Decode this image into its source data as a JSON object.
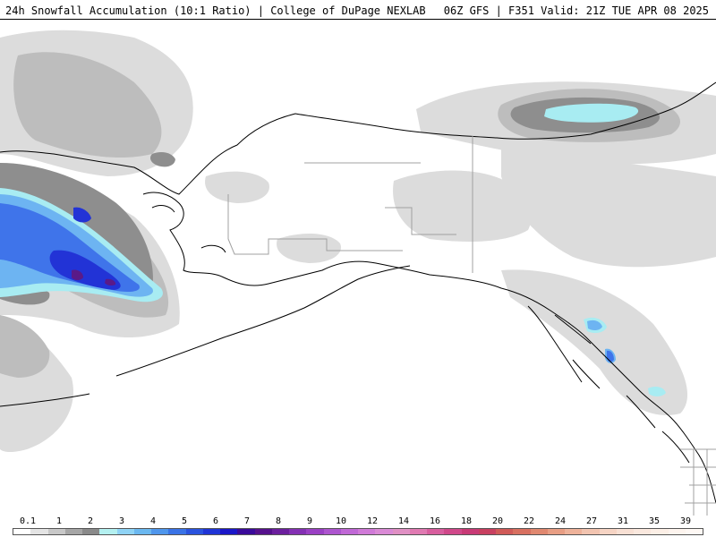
{
  "header": {
    "title_left": "24h Snowfall Accumulation (10:1 Ratio) | College of DuPage NEXLAB",
    "title_right": "06Z GFS | F351 Valid: 21Z TUE APR 08 2025"
  },
  "legend": {
    "tick_labels": [
      "0.1",
      "1",
      "2",
      "3",
      "4",
      "5",
      "6",
      "7",
      "8",
      "9",
      "10",
      "12",
      "14",
      "16",
      "18",
      "20",
      "22",
      "24",
      "27",
      "31",
      "35",
      "39"
    ],
    "colors": [
      "#ffffff",
      "#e4e4e4",
      "#c8c8c8",
      "#a6a6a6",
      "#8a8a8a",
      "#b4f0f0",
      "#8fd3f5",
      "#6bb8f0",
      "#4f96ec",
      "#3a73e6",
      "#2a53de",
      "#1f34d6",
      "#1a16c8",
      "#3a0a9a",
      "#55108c",
      "#6c1f9e",
      "#8430b4",
      "#9a40c4",
      "#ad55cf",
      "#c068d6",
      "#d07ad8",
      "#da8ad6",
      "#e090c4",
      "#e07ab2",
      "#d85e9e",
      "#d0488a",
      "#c83a76",
      "#c84060",
      "#d05a58",
      "#d87060",
      "#e08870",
      "#e89e84",
      "#eeb29a",
      "#f2c4b0",
      "#f6d4c4",
      "#f8e0d4",
      "#fae8de",
      "#fcefe6",
      "#fdf4ee",
      "#fef8f4"
    ]
  },
  "map_data": {
    "colors": {
      "snow_light": "#dcdcdc",
      "snow_mid": "#bdbdbd",
      "snow_dark": "#8e8e8e",
      "snow_cyan": "#a8ecf2",
      "snow_blue_light": "#6db4f2",
      "snow_blue": "#3f74ea",
      "snow_blue_dark": "#2233d6",
      "snow_purple": "#5a1a88",
      "coastline": "#000000",
      "border": "#a0a0a0"
    }
  }
}
